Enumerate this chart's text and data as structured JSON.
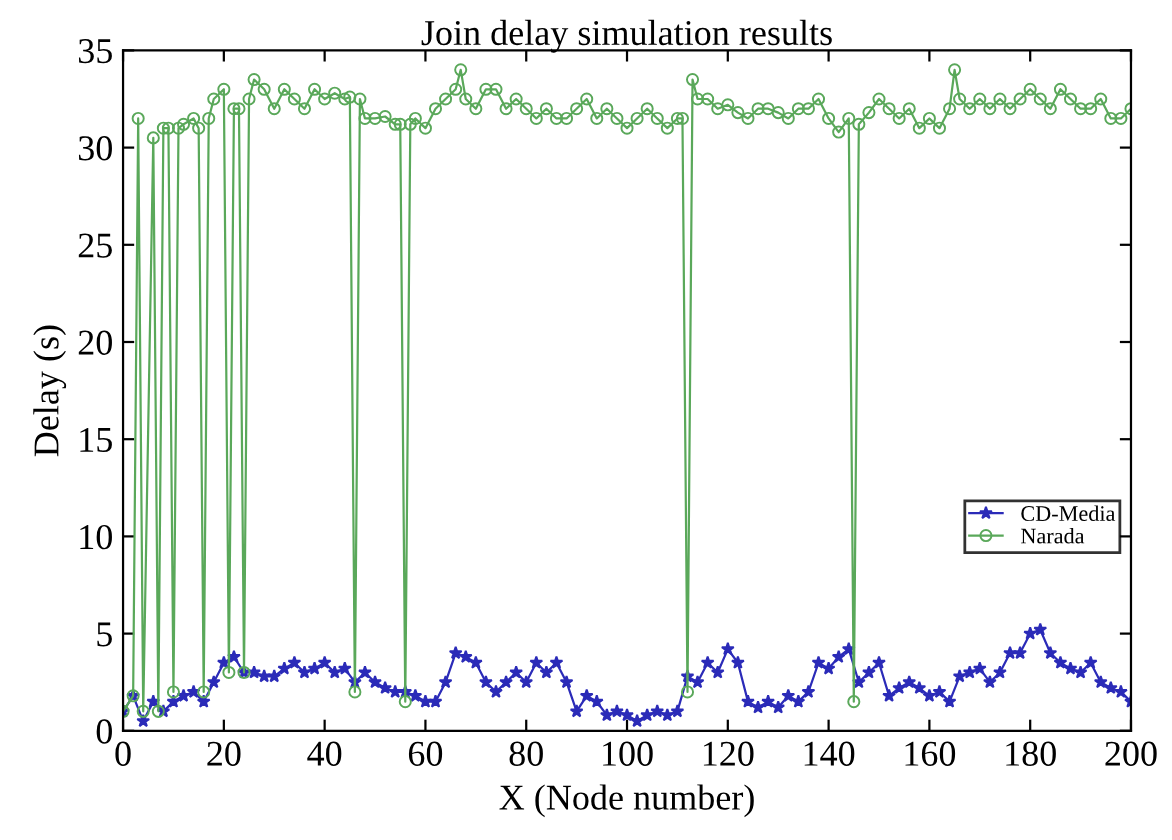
{
  "chart_data": {
    "type": "line",
    "title": "Join delay simulation results",
    "xlabel": "X (Node number)",
    "ylabel": "Delay (s)",
    "xlim": [
      0,
      200
    ],
    "xticks": [
      0,
      20,
      40,
      60,
      80,
      100,
      120,
      140,
      160,
      180,
      200
    ],
    "ylim": [
      0,
      35
    ],
    "yticks": [
      0,
      5,
      10,
      15,
      20,
      25,
      30,
      35
    ],
    "grid": false,
    "legend": "right",
    "line_style": "solid",
    "series": [
      {
        "name": "CD-Media",
        "color": "#2b2bb8",
        "marker": "star",
        "x": [
          0,
          2,
          4,
          6,
          8,
          10,
          12,
          14,
          16,
          18,
          20,
          22,
          24,
          26,
          28,
          30,
          32,
          34,
          36,
          38,
          40,
          42,
          44,
          46,
          48,
          50,
          52,
          54,
          56,
          58,
          60,
          62,
          64,
          66,
          68,
          70,
          72,
          74,
          76,
          78,
          80,
          82,
          84,
          86,
          88,
          90,
          92,
          94,
          96,
          98,
          100,
          102,
          104,
          106,
          108,
          110,
          112,
          114,
          116,
          118,
          120,
          122,
          124,
          126,
          128,
          130,
          132,
          134,
          136,
          138,
          140,
          142,
          144,
          146,
          148,
          150,
          152,
          154,
          156,
          158,
          160,
          162,
          164,
          166,
          168,
          170,
          172,
          174,
          176,
          178,
          180,
          182,
          184,
          186,
          188,
          190,
          192,
          194,
          196,
          198,
          200
        ],
        "values": [
          1,
          1.8,
          0.5,
          1.5,
          1,
          1.5,
          1.8,
          2,
          1.5,
          2.5,
          3.5,
          3.8,
          3,
          3,
          2.8,
          2.8,
          3.2,
          3.5,
          3,
          3.2,
          3.5,
          3,
          3.2,
          2.5,
          3,
          2.5,
          2.2,
          2,
          2,
          1.8,
          1.5,
          1.5,
          2.5,
          4,
          3.8,
          3.5,
          2.5,
          2,
          2.5,
          3,
          2.5,
          3.5,
          3,
          3.5,
          2.5,
          1,
          1.8,
          1.5,
          0.8,
          1,
          0.8,
          0.5,
          0.8,
          1,
          0.8,
          1,
          2.8,
          2.5,
          3.5,
          3,
          4.2,
          3.5,
          1.5,
          1.2,
          1.5,
          1.2,
          1.8,
          1.5,
          2,
          3.5,
          3.2,
          3.8,
          4.2,
          2.5,
          3,
          3.5,
          1.8,
          2.2,
          2.5,
          2.2,
          1.8,
          2,
          1.5,
          2.8,
          3,
          3.2,
          2.5,
          3,
          4,
          4,
          5,
          5.2,
          4,
          3.5,
          3.2,
          3,
          3.5,
          2.5,
          2.2,
          2,
          1.5
        ]
      },
      {
        "name": "Narada",
        "color": "#5aa85a",
        "marker": "circle",
        "x": [
          0,
          2,
          3,
          4,
          6,
          7,
          8,
          9,
          10,
          11,
          12,
          14,
          15,
          16,
          17,
          18,
          20,
          21,
          22,
          23,
          24,
          25,
          26,
          28,
          30,
          32,
          34,
          36,
          38,
          40,
          42,
          44,
          45,
          46,
          47,
          48,
          50,
          52,
          54,
          55,
          56,
          57,
          58,
          60,
          62,
          64,
          66,
          67,
          68,
          70,
          72,
          74,
          76,
          78,
          80,
          82,
          84,
          86,
          88,
          90,
          92,
          94,
          96,
          98,
          100,
          102,
          104,
          106,
          108,
          110,
          111,
          112,
          113,
          114,
          116,
          118,
          120,
          122,
          124,
          126,
          128,
          130,
          132,
          134,
          136,
          138,
          140,
          142,
          144,
          145,
          146,
          148,
          150,
          152,
          154,
          156,
          158,
          160,
          162,
          164,
          165,
          166,
          168,
          170,
          172,
          174,
          176,
          178,
          180,
          182,
          184,
          186,
          188,
          190,
          192,
          194,
          196,
          198,
          200
        ],
        "values": [
          1,
          1.8,
          31.5,
          1,
          30.5,
          1,
          31,
          31,
          2,
          31,
          31.2,
          31.5,
          31,
          2,
          31.5,
          32.5,
          33,
          3,
          32,
          32,
          3,
          32.5,
          33.5,
          33,
          32,
          33,
          32.5,
          32,
          33,
          32.5,
          32.8,
          32.5,
          32.6,
          2,
          32.5,
          31.5,
          31.5,
          31.6,
          31.2,
          31.2,
          1.5,
          31.2,
          31.5,
          31,
          32,
          32.5,
          33,
          34,
          32.5,
          32,
          33,
          33,
          32,
          32.5,
          32,
          31.5,
          32,
          31.5,
          31.5,
          32,
          32.5,
          31.5,
          32,
          31.5,
          31,
          31.5,
          32,
          31.5,
          31,
          31.5,
          31.5,
          2,
          33.5,
          32.5,
          32.5,
          32,
          32.2,
          31.8,
          31.5,
          32,
          32,
          31.8,
          31.5,
          32,
          32,
          32.5,
          31.5,
          30.8,
          31.5,
          1.5,
          31.2,
          31.8,
          32.5,
          32,
          31.5,
          32,
          31,
          31.5,
          31,
          32,
          34,
          32.5,
          32,
          32.5,
          32,
          32.5,
          32,
          32.5,
          33,
          32.5,
          32,
          33,
          32.5,
          32,
          32,
          32.5,
          31.5,
          31.5,
          32
        ]
      }
    ]
  }
}
